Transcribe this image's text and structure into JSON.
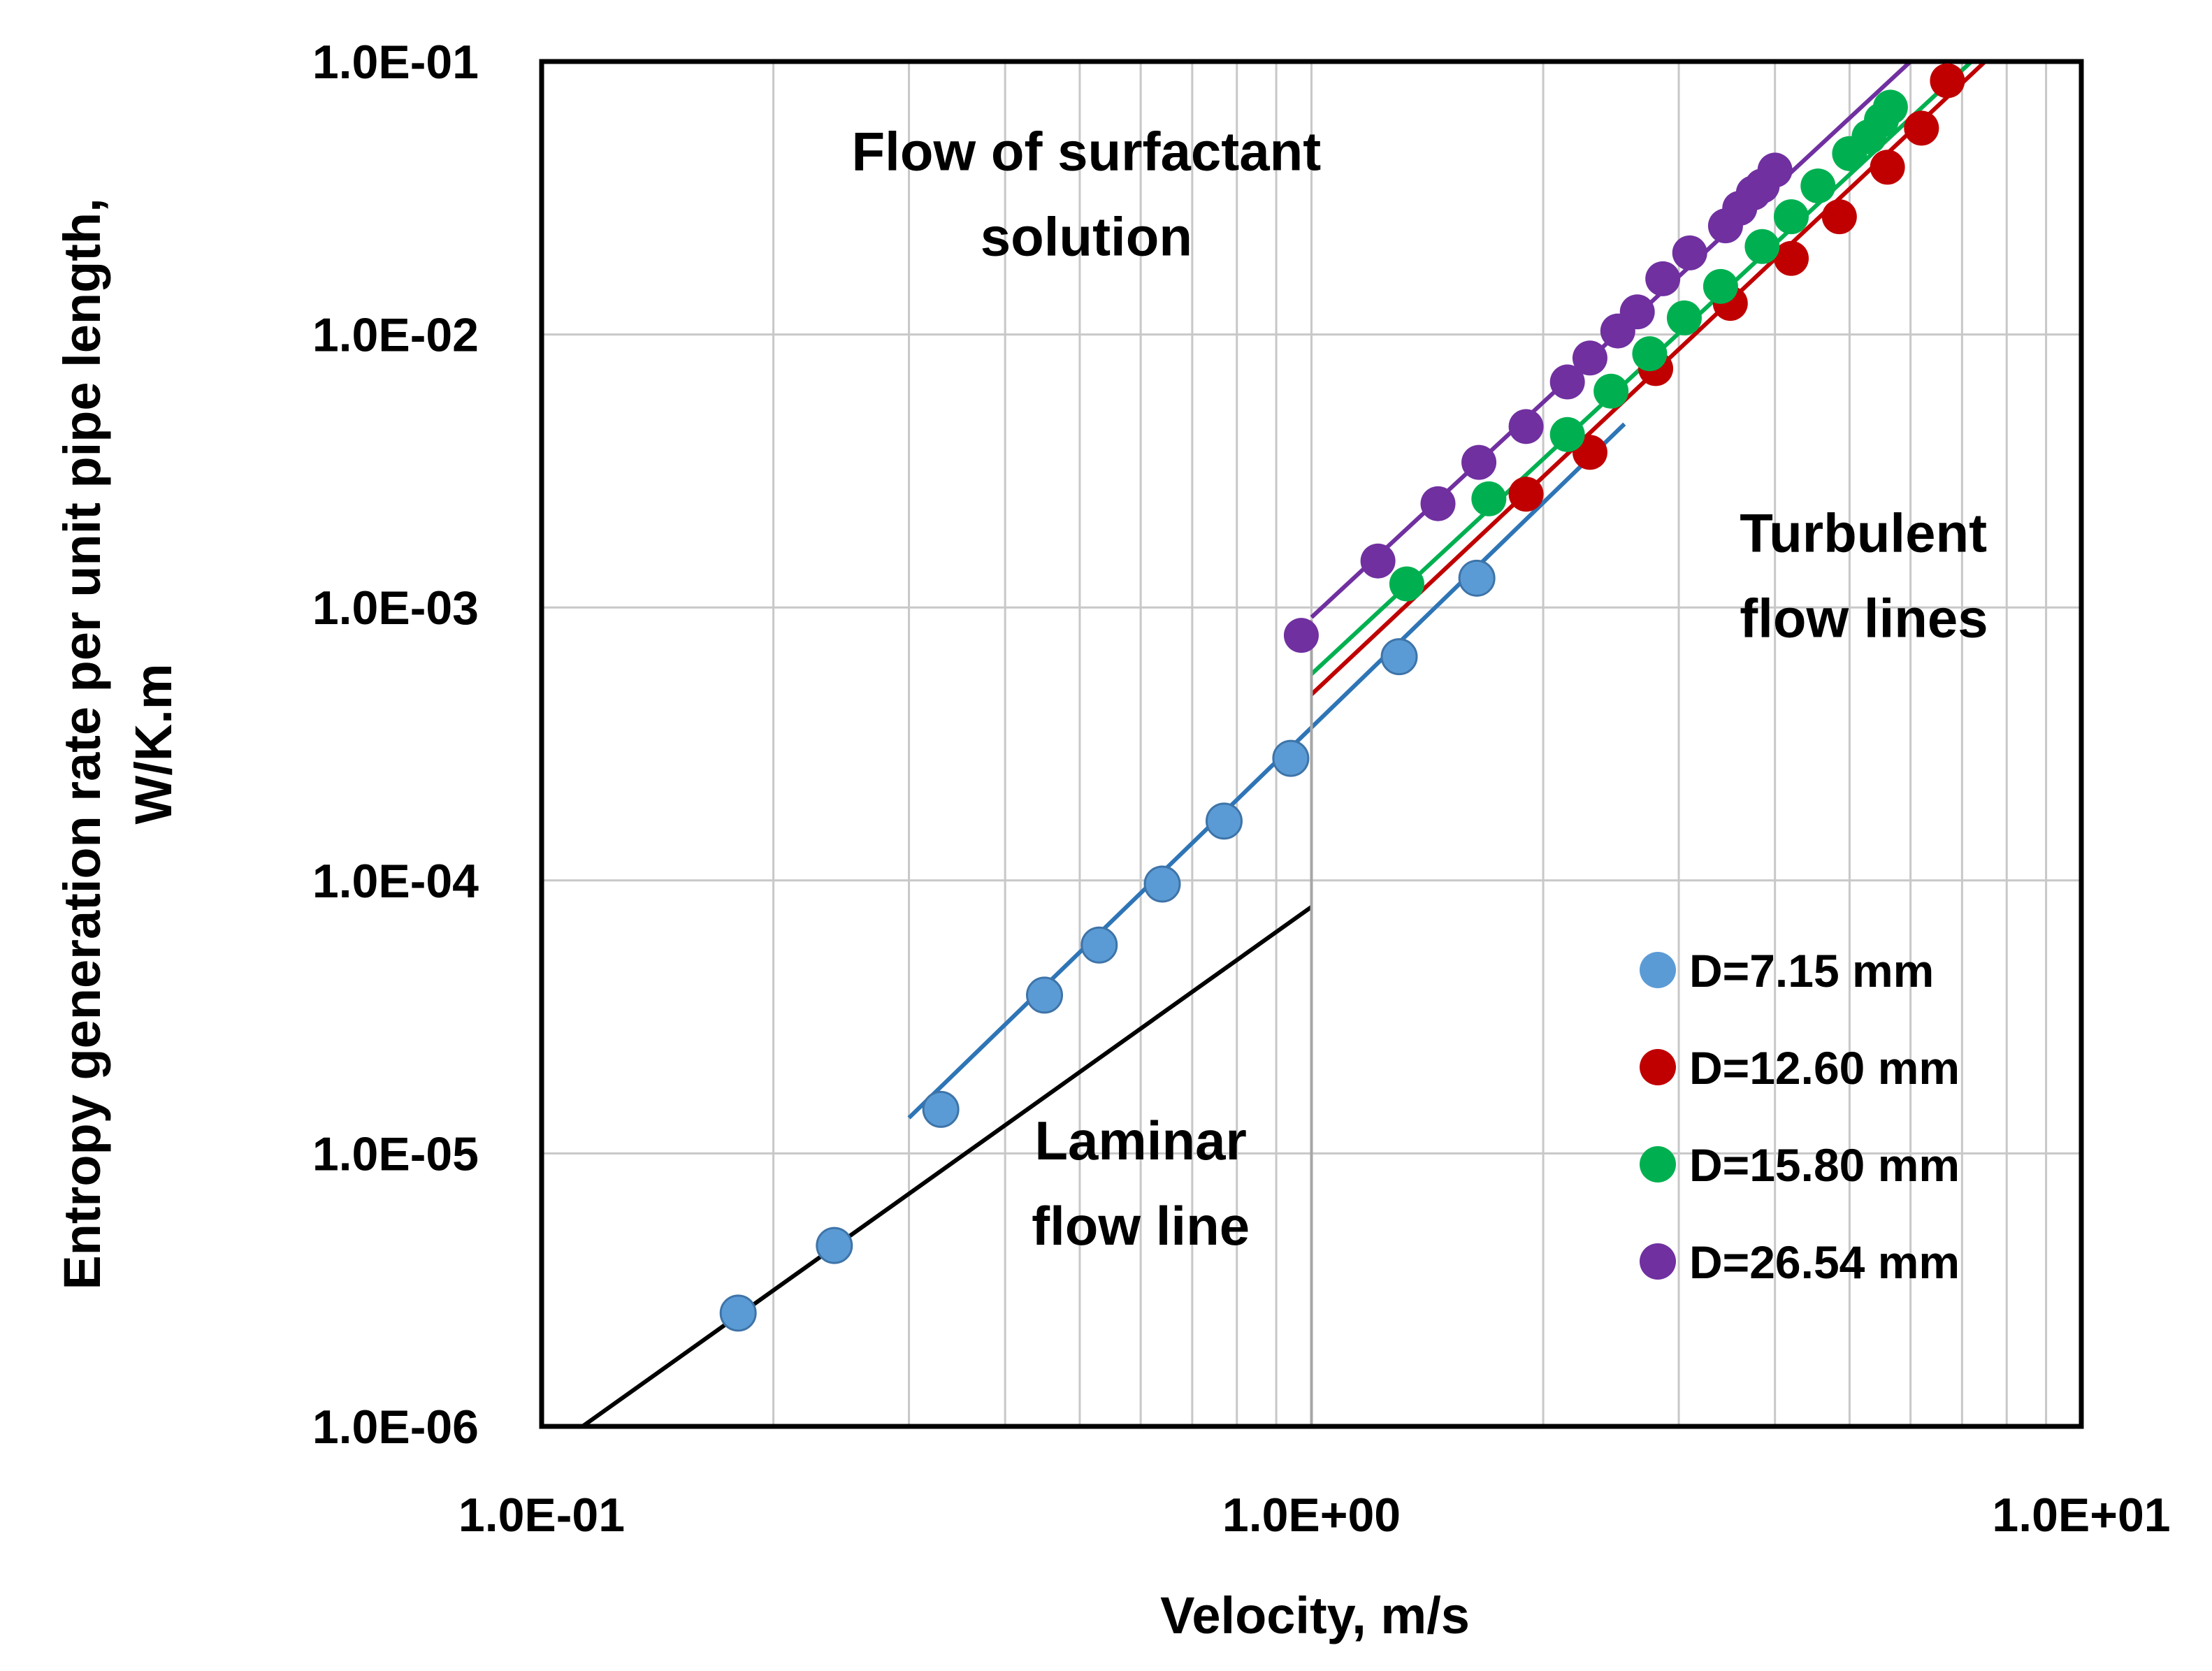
{
  "chart_data": {
    "type": "scatter",
    "xscale": "log",
    "yscale": "log",
    "xlim": [
      0.1,
      10
    ],
    "ylim": [
      1e-06,
      0.1
    ],
    "xlabel": "Velocity, m/s",
    "ylabel_line1": "Entropy generation rate per unit pipe length,",
    "ylabel_line2": "W/K.m",
    "xtick_labels": [
      "1.0E-01",
      "1.0E+00",
      "1.0E+01"
    ],
    "xtick_values": [
      0.1,
      1,
      10
    ],
    "ytick_labels": [
      "1.0E-06",
      "1.0E-05",
      "1.0E-04",
      "1.0E-03",
      "1.0E-02",
      "1.0E-01"
    ],
    "ytick_values": [
      1e-06,
      1e-05,
      0.0001,
      0.001,
      0.01,
      0.1
    ],
    "grid": true,
    "annotations": [
      {
        "id": "title-flow",
        "lines": [
          "Flow of surfactant",
          "solution"
        ],
        "x": 0.51,
        "y": 0.04
      },
      {
        "id": "turbulent",
        "lines": [
          "Turbulent",
          "flow lines"
        ],
        "x": 3.6,
        "y": 0.0016
      },
      {
        "id": "laminar",
        "lines": [
          "Laminar",
          "flow line"
        ],
        "x": 0.6,
        "y": 9.5e-06
      }
    ],
    "legend": {
      "position": "lower-right"
    },
    "series": [
      {
        "name": "D=7.15 mm",
        "color": "#5B9BD5",
        "points": [
          [
            0.18,
            2.6e-06
          ],
          [
            0.24,
            4.6e-06
          ],
          [
            0.33,
            1.45e-05
          ],
          [
            0.45,
            3.8e-05
          ],
          [
            0.53,
            5.8e-05
          ],
          [
            0.64,
            9.7e-05
          ],
          [
            0.77,
            0.000165
          ],
          [
            0.94,
            0.00028
          ],
          [
            1.3,
            0.00066
          ],
          [
            1.64,
            0.00128
          ]
        ]
      },
      {
        "name": "D=12.60 mm",
        "color": "#C00000",
        "points": [
          [
            1.9,
            0.0026
          ],
          [
            2.3,
            0.0037
          ],
          [
            2.8,
            0.0075
          ],
          [
            3.5,
            0.013
          ],
          [
            4.2,
            0.019
          ],
          [
            4.85,
            0.027
          ],
          [
            5.6,
            0.041
          ],
          [
            6.2,
            0.057
          ],
          [
            6.7,
            0.085
          ]
        ]
      },
      {
        "name": "D=15.80 mm",
        "color": "#00B050",
        "points": [
          [
            1.33,
            0.00122
          ],
          [
            1.7,
            0.0025
          ],
          [
            2.15,
            0.0043
          ],
          [
            2.45,
            0.0062
          ],
          [
            2.75,
            0.0085
          ],
          [
            3.05,
            0.0115
          ],
          [
            3.4,
            0.015
          ],
          [
            3.85,
            0.021
          ],
          [
            4.2,
            0.027
          ],
          [
            4.55,
            0.035
          ],
          [
            5.0,
            0.046
          ],
          [
            5.3,
            0.053
          ],
          [
            5.5,
            0.061
          ],
          [
            5.65,
            0.068
          ]
        ]
      },
      {
        "name": "D=26.54 mm",
        "color": "#7030A0",
        "points": [
          [
            0.97,
            0.00079
          ],
          [
            1.22,
            0.00148
          ],
          [
            1.46,
            0.0024
          ],
          [
            1.65,
            0.0034
          ],
          [
            1.9,
            0.0046
          ],
          [
            2.15,
            0.0067
          ],
          [
            2.3,
            0.0082
          ],
          [
            2.5,
            0.0103
          ],
          [
            2.65,
            0.0121
          ],
          [
            2.86,
            0.016
          ],
          [
            3.1,
            0.0199
          ],
          [
            3.45,
            0.025
          ],
          [
            3.6,
            0.029
          ],
          [
            3.75,
            0.033
          ],
          [
            3.85,
            0.035
          ],
          [
            4.0,
            0.04
          ]
        ]
      }
    ],
    "lines": [
      {
        "name": "laminar-flow-line",
        "color": "#000000",
        "points": [
          [
            0.113,
            1e-06
          ],
          [
            1.0,
            8e-05
          ]
        ]
      },
      {
        "name": "turbulent-line-d715",
        "color": "#2E75B6",
        "points": [
          [
            0.3,
            1.35e-05
          ],
          [
            2.55,
            0.0047
          ]
        ]
      },
      {
        "name": "turbulent-line-d1260",
        "color": "#C00000",
        "points": [
          [
            1.0,
            0.00048
          ],
          [
            7.5,
            0.1
          ]
        ]
      },
      {
        "name": "turbulent-line-d1580",
        "color": "#00B050",
        "points": [
          [
            1.0,
            0.00057
          ],
          [
            7.2,
            0.1
          ]
        ]
      },
      {
        "name": "turbulent-line-d2654",
        "color": "#7030A0",
        "points": [
          [
            1.0,
            0.00092
          ],
          [
            6.0,
            0.1
          ]
        ]
      },
      {
        "name": "transition-marker-line",
        "color": "#A6A6A6",
        "points": [
          [
            1.0,
            1e-06
          ],
          [
            1.0,
            0.0009
          ]
        ]
      }
    ]
  }
}
